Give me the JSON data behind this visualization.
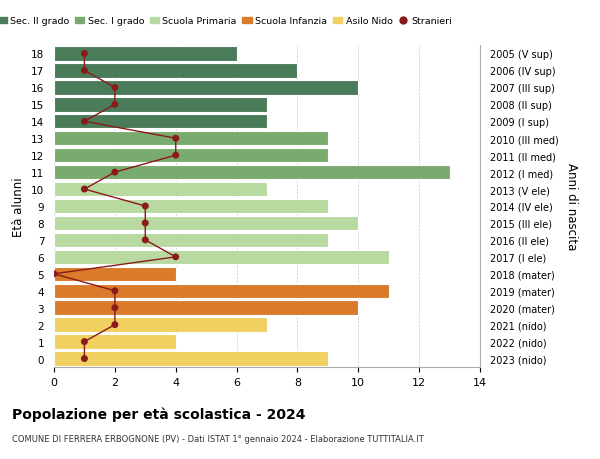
{
  "ages": [
    18,
    17,
    16,
    15,
    14,
    13,
    12,
    11,
    10,
    9,
    8,
    7,
    6,
    5,
    4,
    3,
    2,
    1,
    0
  ],
  "right_labels": [
    "2005 (V sup)",
    "2006 (IV sup)",
    "2007 (III sup)",
    "2008 (II sup)",
    "2009 (I sup)",
    "2010 (III med)",
    "2011 (II med)",
    "2012 (I med)",
    "2013 (V ele)",
    "2014 (IV ele)",
    "2015 (III ele)",
    "2016 (II ele)",
    "2017 (I ele)",
    "2018 (mater)",
    "2019 (mater)",
    "2020 (mater)",
    "2021 (nido)",
    "2022 (nido)",
    "2023 (nido)"
  ],
  "bar_values": [
    6,
    8,
    10,
    7,
    7,
    9,
    9,
    13,
    7,
    9,
    10,
    9,
    11,
    4,
    11,
    10,
    7,
    4,
    9
  ],
  "bar_colors": [
    "#4a7c59",
    "#4a7c59",
    "#4a7c59",
    "#4a7c59",
    "#4a7c59",
    "#7aab6e",
    "#7aab6e",
    "#7aab6e",
    "#b8d9a0",
    "#b8d9a0",
    "#b8d9a0",
    "#b8d9a0",
    "#b8d9a0",
    "#d97b2b",
    "#d97b2b",
    "#d97b2b",
    "#f0d060",
    "#f0d060",
    "#f0d060"
  ],
  "stranieri_values": [
    1,
    1,
    2,
    2,
    1,
    4,
    4,
    2,
    1,
    3,
    3,
    3,
    4,
    0,
    2,
    2,
    2,
    1,
    1
  ],
  "stranieri_color": "#8b1a1a",
  "legend_labels": [
    "Sec. II grado",
    "Sec. I grado",
    "Scuola Primaria",
    "Scuola Infanzia",
    "Asilo Nido",
    "Stranieri"
  ],
  "legend_colors": [
    "#4a7c59",
    "#7aab6e",
    "#b8d9a0",
    "#d97b2b",
    "#f0d060",
    "#8b1a1a"
  ],
  "ylabel_left": "Età alunni",
  "ylabel_right": "Anni di nascita",
  "title": "Popolazione per età scolastica - 2024",
  "subtitle": "COMUNE DI FERRERA ERBOGNONE (PV) - Dati ISTAT 1° gennaio 2024 - Elaborazione TUTTITALIA.IT",
  "xlim": [
    0,
    14
  ],
  "background_color": "#ffffff",
  "grid_color": "#cccccc"
}
